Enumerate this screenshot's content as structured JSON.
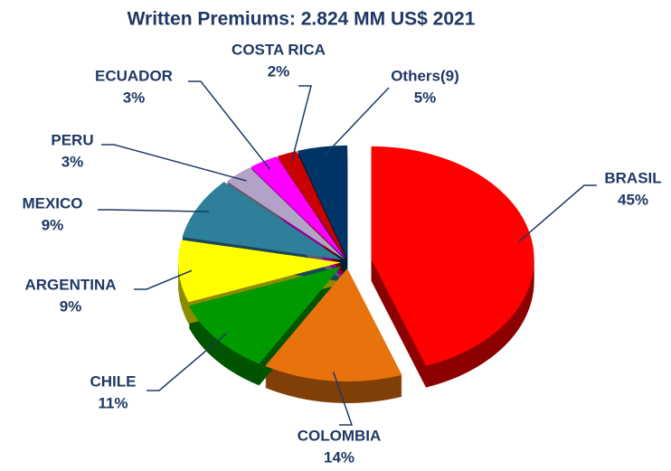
{
  "chart_data": {
    "type": "pie",
    "title": "Written Premiums: 2.824 MM US$ 2021",
    "categories": [
      "BRASIL",
      "COLOMBIA",
      "CHILE",
      "ARGENTINA",
      "MEXICO",
      "PERU",
      "ECUADOR",
      "COSTA RICA",
      "Others(9)"
    ],
    "values": [
      45,
      14,
      11,
      9,
      9,
      3,
      3,
      2,
      5
    ],
    "value_labels": [
      "45%",
      "14%",
      "11%",
      "9%",
      "9%",
      "3%",
      "3%",
      "2%",
      "5%"
    ],
    "colors": [
      "#ff0000",
      "#e8720c",
      "#009900",
      "#ffff00",
      "#2e7f9a",
      "#b3a2c7",
      "#ff00ff",
      "#cc0000",
      "#003366"
    ]
  }
}
